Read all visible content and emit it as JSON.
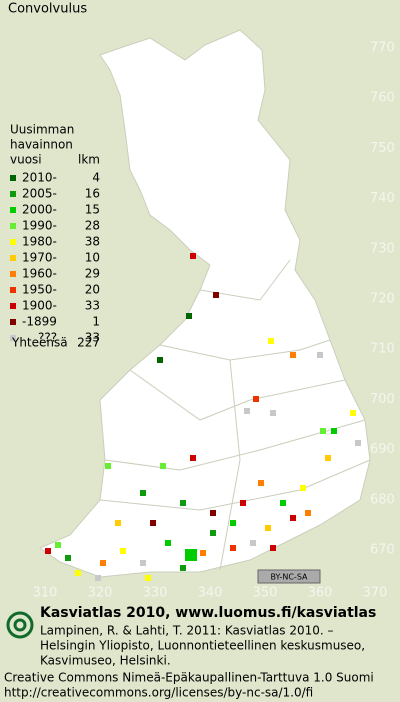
{
  "title": "Convolvulus",
  "legend": {
    "header": [
      "Uusimman",
      "havainnon",
      "vuosi"
    ],
    "count_header": "lkm",
    "rows": [
      {
        "label": "2010-",
        "count": 4,
        "color": "#006400"
      },
      {
        "label": "2005-",
        "count": 16,
        "color": "#109a10"
      },
      {
        "label": "2000-",
        "count": 15,
        "color": "#00cc00"
      },
      {
        "label": "1990-",
        "count": 28,
        "color": "#66ee33"
      },
      {
        "label": "1980-",
        "count": 38,
        "color": "#ffff00"
      },
      {
        "label": "1970-",
        "count": 10,
        "color": "#ffcc00"
      },
      {
        "label": "1960-",
        "count": 29,
        "color": "#ff8000"
      },
      {
        "label": "1950-",
        "count": 20,
        "color": "#ee3300"
      },
      {
        "label": "1900-",
        "count": 33,
        "color": "#cc0000"
      },
      {
        "label": "-1899",
        "count": 1,
        "color": "#800000"
      },
      {
        "label": "???",
        "count": 33,
        "color": "#c8c8c8"
      }
    ],
    "total_label": "Yhteensä",
    "total": 227
  },
  "grid": {
    "y_labels": [
      770,
      760,
      750,
      740,
      730,
      720,
      710,
      700,
      690,
      680,
      670
    ],
    "x_labels": [
      310,
      320,
      330,
      340,
      350,
      360,
      370
    ]
  },
  "license_badge": "BY-NC-SA",
  "footer": {
    "title": "Kasviatlas 2010, www.luomus.fi/kasviatlas",
    "citation": [
      "Lampinen, R. & Lahti, T. 2011: Kasviatlas 2010. –",
      "Helsingin Yliopisto, Luonnontieteellinen keskusmuseo,",
      "Kasvimuseo, Helsinki."
    ],
    "license": [
      "Creative Commons Nimeä-Epäkaupallinen-Tarttuva 1.0 Suomi",
      "http://creativecommons.org/licenses/by-nc-sa/1.0/fi"
    ]
  }
}
